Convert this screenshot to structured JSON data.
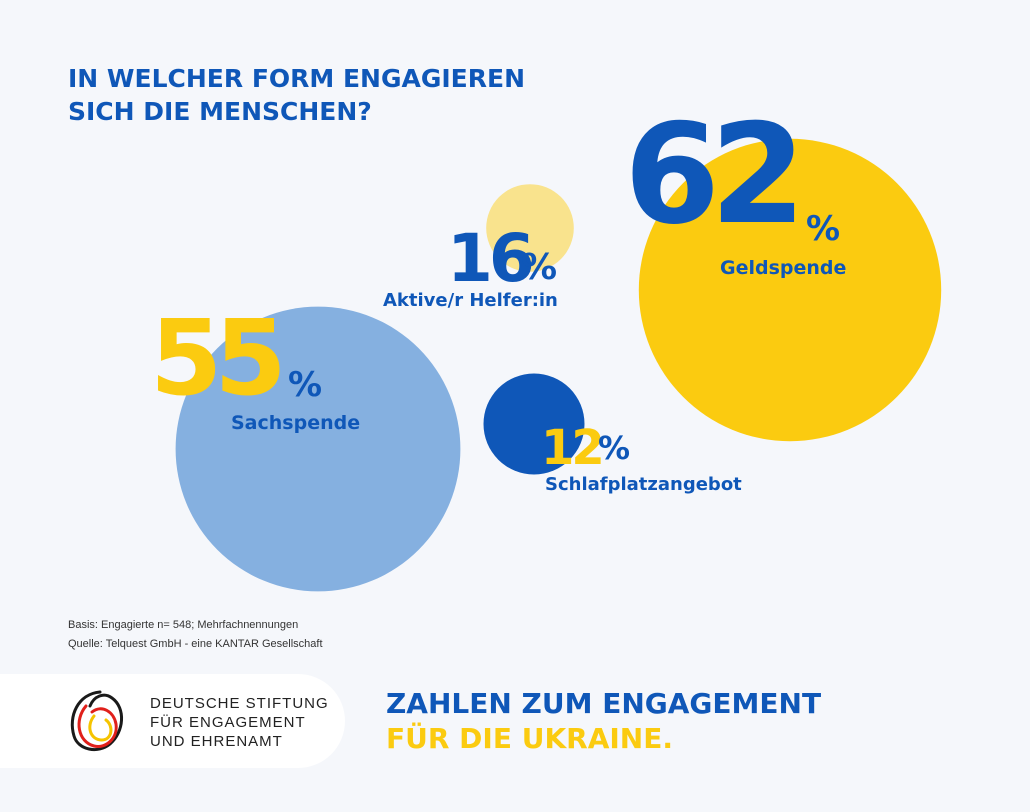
{
  "headline": {
    "line1": "IN WELCHER FORM ENGAGIEREN",
    "line2": "SICH DIE MENSCHEN?"
  },
  "colors": {
    "background": "#f5f7fb",
    "blue": "#0f57b8",
    "yellow": "#fbcb10",
    "light_yellow": "#f9e38d",
    "light_blue": "#85b0e0"
  },
  "chart_data": {
    "type": "bubble",
    "title": "IN WELCHER FORM ENGAGIEREN SICH DIE MENSCHEN?",
    "unit": "%",
    "items": [
      {
        "label": "Geldspende",
        "value": 62,
        "number_text": "62",
        "percent_sign": "%",
        "bubble_color": "#fbcb10"
      },
      {
        "label": "Aktive/r Helfer:in",
        "value": 16,
        "number_text": "16",
        "percent_sign": "%",
        "bubble_color": "#f9e38d"
      },
      {
        "label": "Sachspende",
        "value": 55,
        "number_text": "55",
        "percent_sign": "%",
        "bubble_color": "#85b0e0"
      },
      {
        "label": "Schlafplatzangebot",
        "value": 12,
        "number_text": "12",
        "percent_sign": "%",
        "bubble_color": "#0f57b8"
      }
    ]
  },
  "footnote": {
    "basis": "Basis: Engagierte n= 548; Mehrfachnennungen",
    "source": "Quelle: Telquest GmbH - eine KANTAR Gesellschaft"
  },
  "logo": {
    "line1": "DEUTSCHE STIFTUNG",
    "line2": "FÜR ENGAGEMENT",
    "line3": "UND EHRENAMT"
  },
  "tagline": {
    "line1": "ZAHLEN ZUM ENGAGEMENT",
    "line2": "FÜR DIE UKRAINE."
  }
}
